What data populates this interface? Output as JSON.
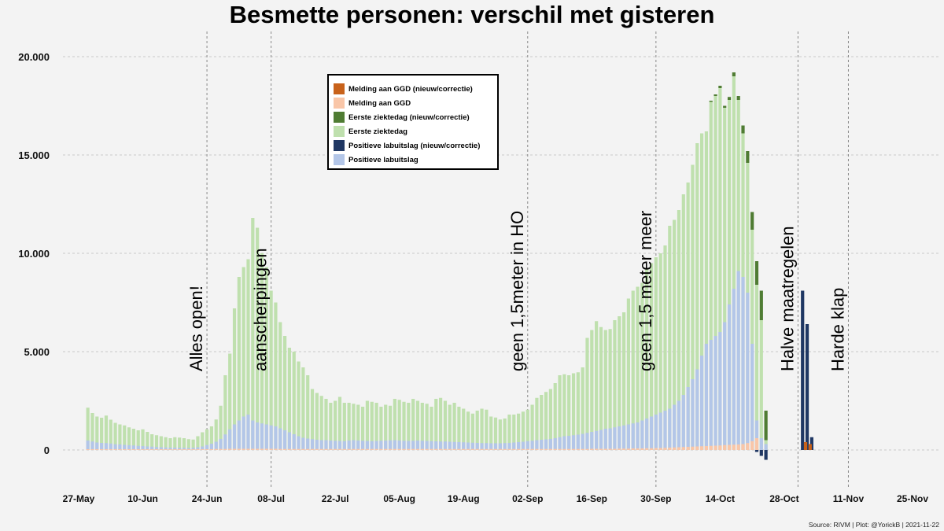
{
  "chart_data": {
    "type": "bar",
    "stacked": true,
    "title": "Besmette personen: verschil met gisteren",
    "xlabel": "",
    "ylabel": "",
    "ylim": [
      -1700,
      21200
    ],
    "y_ticks": [
      0,
      5000,
      10000,
      15000,
      20000
    ],
    "y_tick_labels": [
      "0",
      "5.000",
      "10.000",
      "15.000",
      "20.000"
    ],
    "x_range_days": [
      -2.5,
      181.5
    ],
    "x_ticks": [
      {
        "day": 0,
        "label": "27-May"
      },
      {
        "day": 14,
        "label": "10-Jun"
      },
      {
        "day": 28,
        "label": "24-Jun"
      },
      {
        "day": 42,
        "label": "08-Jul"
      },
      {
        "day": 56,
        "label": "22-Jul"
      },
      {
        "day": 70,
        "label": "05-Aug"
      },
      {
        "day": 84,
        "label": "19-Aug"
      },
      {
        "day": 98,
        "label": "02-Sep"
      },
      {
        "day": 112,
        "label": "16-Sep"
      },
      {
        "day": 126,
        "label": "30-Sep"
      },
      {
        "day": 140,
        "label": "14-Oct"
      },
      {
        "day": 154,
        "label": "28-Oct"
      },
      {
        "day": 168,
        "label": "11-Nov"
      },
      {
        "day": 182,
        "label": "25-Nov"
      }
    ],
    "start_date": "2021-05-27",
    "first_bar_day": 2,
    "legend": [
      {
        "key": "ggd_new",
        "label": "Melding aan GGD (nieuw/correctie)",
        "color": "#c8621a"
      },
      {
        "key": "ggd",
        "label": "Melding aan GGD",
        "color": "#f9c6a8"
      },
      {
        "key": "ezd_new",
        "label": "Eerste ziektedag (nieuw/correctie)",
        "color": "#4f7c33"
      },
      {
        "key": "ezd",
        "label": "Eerste ziektedag",
        "color": "#bfe0ae"
      },
      {
        "key": "lab_new",
        "label": "Positieve labuitslag (nieuw/correctie)",
        "color": "#1f3763"
      },
      {
        "key": "lab",
        "label": "Positieve labuitslag",
        "color": "#b3c6e8"
      }
    ],
    "legend_position": "top-center-left",
    "annotations": [
      {
        "label": "Alles open!",
        "day": 28
      },
      {
        "label": "aanscherpingen",
        "day": 42
      },
      {
        "label": "geen 1,5meter in HO",
        "day": 98
      },
      {
        "label": "geen 1,5 meter meer",
        "day": 126
      },
      {
        "label": "Halve maatregelen",
        "day": 157
      },
      {
        "label": "Harde klap",
        "day": 168
      }
    ],
    "annotation_vlines_day": [
      28,
      42,
      98,
      126,
      157,
      168
    ],
    "series": [
      {
        "name": "Eerste ziektedag (totaal)",
        "key": "ezd_total",
        "values": [
          2150,
          1880,
          1700,
          1640,
          1750,
          1540,
          1380,
          1300,
          1250,
          1150,
          1080,
          1000,
          1050,
          920,
          800,
          750,
          700,
          650,
          600,
          650,
          630,
          600,
          550,
          530,
          700,
          900,
          1050,
          1200,
          1550,
          2250,
          3800,
          4900,
          7200,
          8800,
          9300,
          9700,
          11800,
          11300,
          10000,
          9300,
          8100,
          7500,
          6500,
          5800,
          5200,
          5000,
          4500,
          4200,
          3800,
          3100,
          2900,
          2750,
          2600,
          2400,
          2500,
          2700,
          2400,
          2400,
          2350,
          2300,
          2200,
          2500,
          2450,
          2400,
          2200,
          2300,
          2250,
          2600,
          2550,
          2450,
          2400,
          2600,
          2500,
          2400,
          2350,
          2200,
          2600,
          2650,
          2500,
          2300,
          2400,
          2200,
          2100,
          1950,
          1850,
          2000,
          2100,
          2050,
          1700,
          1650,
          1550,
          1600,
          1800,
          1800,
          1850,
          1950,
          2050,
          2300,
          2650,
          2800,
          2950,
          3100,
          3400,
          3800,
          3850,
          3800,
          3900,
          3950,
          4200,
          5700,
          6100,
          6550,
          6250,
          6100,
          6150,
          6600,
          6800,
          7000,
          7700,
          8100,
          8300,
          8500,
          9200,
          9500,
          9800,
          10000,
          10400,
          11400,
          11700,
          12200,
          13000,
          13600,
          14500,
          15600,
          16100,
          16200,
          17700,
          18000,
          18400,
          17400,
          17800,
          19000,
          17800,
          16100,
          14600,
          11200,
          8400,
          6600,
          500
        ],
        "color_key": "ezd"
      },
      {
        "name": "Positieve labuitslag",
        "key": "lab",
        "values": [
          480,
          430,
          380,
          360,
          350,
          330,
          290,
          280,
          260,
          240,
          230,
          210,
          200,
          180,
          170,
          150,
          140,
          130,
          120,
          120,
          110,
          110,
          100,
          110,
          140,
          180,
          250,
          320,
          420,
          560,
          790,
          1050,
          1300,
          1500,
          1700,
          1800,
          1500,
          1400,
          1350,
          1300,
          1250,
          1200,
          1100,
          1000,
          900,
          800,
          700,
          620,
          580,
          550,
          520,
          500,
          500,
          480,
          470,
          460,
          450,
          480,
          500,
          480,
          470,
          460,
          450,
          460,
          470,
          480,
          490,
          500,
          480,
          470,
          460,
          470,
          480,
          470,
          460,
          450,
          440,
          430,
          430,
          420,
          410,
          400,
          390,
          380,
          370,
          360,
          350,
          350,
          340,
          340,
          340,
          350,
          360,
          380,
          400,
          420,
          450,
          470,
          500,
          520,
          540,
          560,
          600,
          650,
          700,
          720,
          750,
          780,
          820,
          870,
          920,
          970,
          1020,
          1080,
          1100,
          1150,
          1200,
          1250,
          1300,
          1350,
          1400,
          1500,
          1600,
          1700,
          1800,
          1900,
          2000,
          2100,
          2300,
          2500,
          2800,
          3200,
          3600,
          4100,
          4800,
          5400,
          5600,
          5800,
          6000,
          6500,
          7400,
          8200,
          9100,
          8800,
          8000,
          5400,
          1500,
          600,
          300
        ],
        "color_key": "lab"
      },
      {
        "name": "Melding aan GGD",
        "key": "ggd",
        "values": [
          40,
          40,
          40,
          40,
          40,
          40,
          40,
          40,
          40,
          40,
          40,
          40,
          40,
          40,
          40,
          40,
          40,
          40,
          40,
          40,
          40,
          40,
          40,
          40,
          40,
          40,
          40,
          40,
          50,
          50,
          50,
          60,
          60,
          60,
          60,
          60,
          60,
          60,
          60,
          60,
          60,
          60,
          50,
          50,
          50,
          50,
          50,
          50,
          50,
          50,
          50,
          50,
          50,
          50,
          50,
          50,
          50,
          50,
          50,
          50,
          50,
          50,
          50,
          50,
          50,
          50,
          50,
          50,
          50,
          50,
          50,
          50,
          50,
          50,
          50,
          50,
          50,
          50,
          50,
          50,
          50,
          50,
          50,
          50,
          50,
          50,
          50,
          50,
          50,
          50,
          50,
          50,
          50,
          50,
          50,
          50,
          50,
          50,
          50,
          50,
          50,
          50,
          50,
          50,
          50,
          50,
          50,
          50,
          50,
          50,
          60,
          60,
          60,
          60,
          60,
          60,
          70,
          70,
          70,
          80,
          80,
          80,
          90,
          90,
          100,
          100,
          110,
          120,
          130,
          140,
          150,
          160,
          170,
          180,
          190,
          200,
          210,
          220,
          230,
          250,
          260,
          270,
          280,
          300,
          350,
          450,
          600
        ],
        "color_key": "ggd"
      },
      {
        "name": "Eerste ziektedag (nieuw/correctie)",
        "key": "ezd_new",
        "values": [
          0,
          0,
          0,
          0,
          0,
          0,
          0,
          0,
          0,
          0,
          0,
          0,
          0,
          0,
          0,
          0,
          0,
          0,
          0,
          0,
          0,
          0,
          0,
          0,
          0,
          0,
          0,
          0,
          0,
          0,
          0,
          0,
          0,
          0,
          0,
          0,
          0,
          0,
          0,
          0,
          0,
          0,
          0,
          0,
          0,
          0,
          0,
          0,
          0,
          0,
          0,
          0,
          0,
          0,
          0,
          0,
          0,
          0,
          0,
          0,
          0,
          0,
          0,
          0,
          0,
          0,
          0,
          0,
          0,
          0,
          0,
          0,
          0,
          0,
          0,
          0,
          0,
          0,
          0,
          0,
          0,
          0,
          0,
          0,
          0,
          0,
          0,
          0,
          0,
          0,
          0,
          0,
          0,
          0,
          0,
          0,
          0,
          0,
          0,
          0,
          0,
          0,
          0,
          0,
          0,
          0,
          0,
          0,
          0,
          0,
          0,
          0,
          0,
          0,
          0,
          0,
          0,
          0,
          0,
          0,
          0,
          0,
          0,
          0,
          0,
          0,
          0,
          0,
          0,
          0,
          0,
          0,
          0,
          0,
          0,
          0,
          60,
          80,
          120,
          100,
          150,
          200,
          200,
          400,
          600,
          900,
          1200,
          1500,
          1500,
          900,
          0
        ],
        "color_key": "ezd_new"
      },
      {
        "name": "Positieve labuitslag (nieuw/correctie)",
        "key": "lab_new",
        "values": [
          0,
          0,
          0,
          0,
          0,
          0,
          0,
          0,
          0,
          0,
          0,
          0,
          0,
          0,
          0,
          0,
          0,
          0,
          0,
          0,
          0,
          0,
          0,
          0,
          0,
          0,
          0,
          0,
          0,
          0,
          0,
          0,
          0,
          0,
          0,
          0,
          0,
          0,
          0,
          0,
          0,
          0,
          0,
          0,
          0,
          0,
          0,
          0,
          0,
          0,
          0,
          0,
          0,
          0,
          0,
          0,
          0,
          0,
          0,
          0,
          0,
          0,
          0,
          0,
          0,
          0,
          0,
          0,
          0,
          0,
          0,
          0,
          0,
          0,
          0,
          0,
          0,
          0,
          0,
          0,
          0,
          0,
          0,
          0,
          0,
          0,
          0,
          0,
          0,
          0,
          0,
          0,
          0,
          0,
          0,
          0,
          0,
          0,
          0,
          0,
          0,
          0,
          0,
          0,
          0,
          0,
          0,
          0,
          0,
          0,
          0,
          0,
          0,
          0,
          0,
          0,
          0,
          0,
          0,
          0,
          0,
          0,
          0,
          0,
          0,
          0,
          0,
          0,
          0,
          0,
          0,
          0,
          0,
          0,
          0,
          0,
          0,
          0,
          0,
          0,
          0,
          0,
          0,
          0,
          0,
          0,
          -100,
          -300,
          -500,
          -400,
          0
        ],
        "color_key": "lab_new"
      },
      {
        "name": "Labuitslag nieuw (staart)",
        "key": "lab_new_tail",
        "values_by_day": {
          "158": 8100,
          "159": 6400,
          "160": 650
        },
        "color_key": "lab_new"
      },
      {
        "name": "GGD nieuw (staart)",
        "key": "ggd_new_tail",
        "values_by_day": {
          "159": 400,
          "160": 300
        },
        "color_key": "ggd_new"
      }
    ]
  },
  "source": "Source: RIVM | Plot: @YorickB |  2021-11-22"
}
